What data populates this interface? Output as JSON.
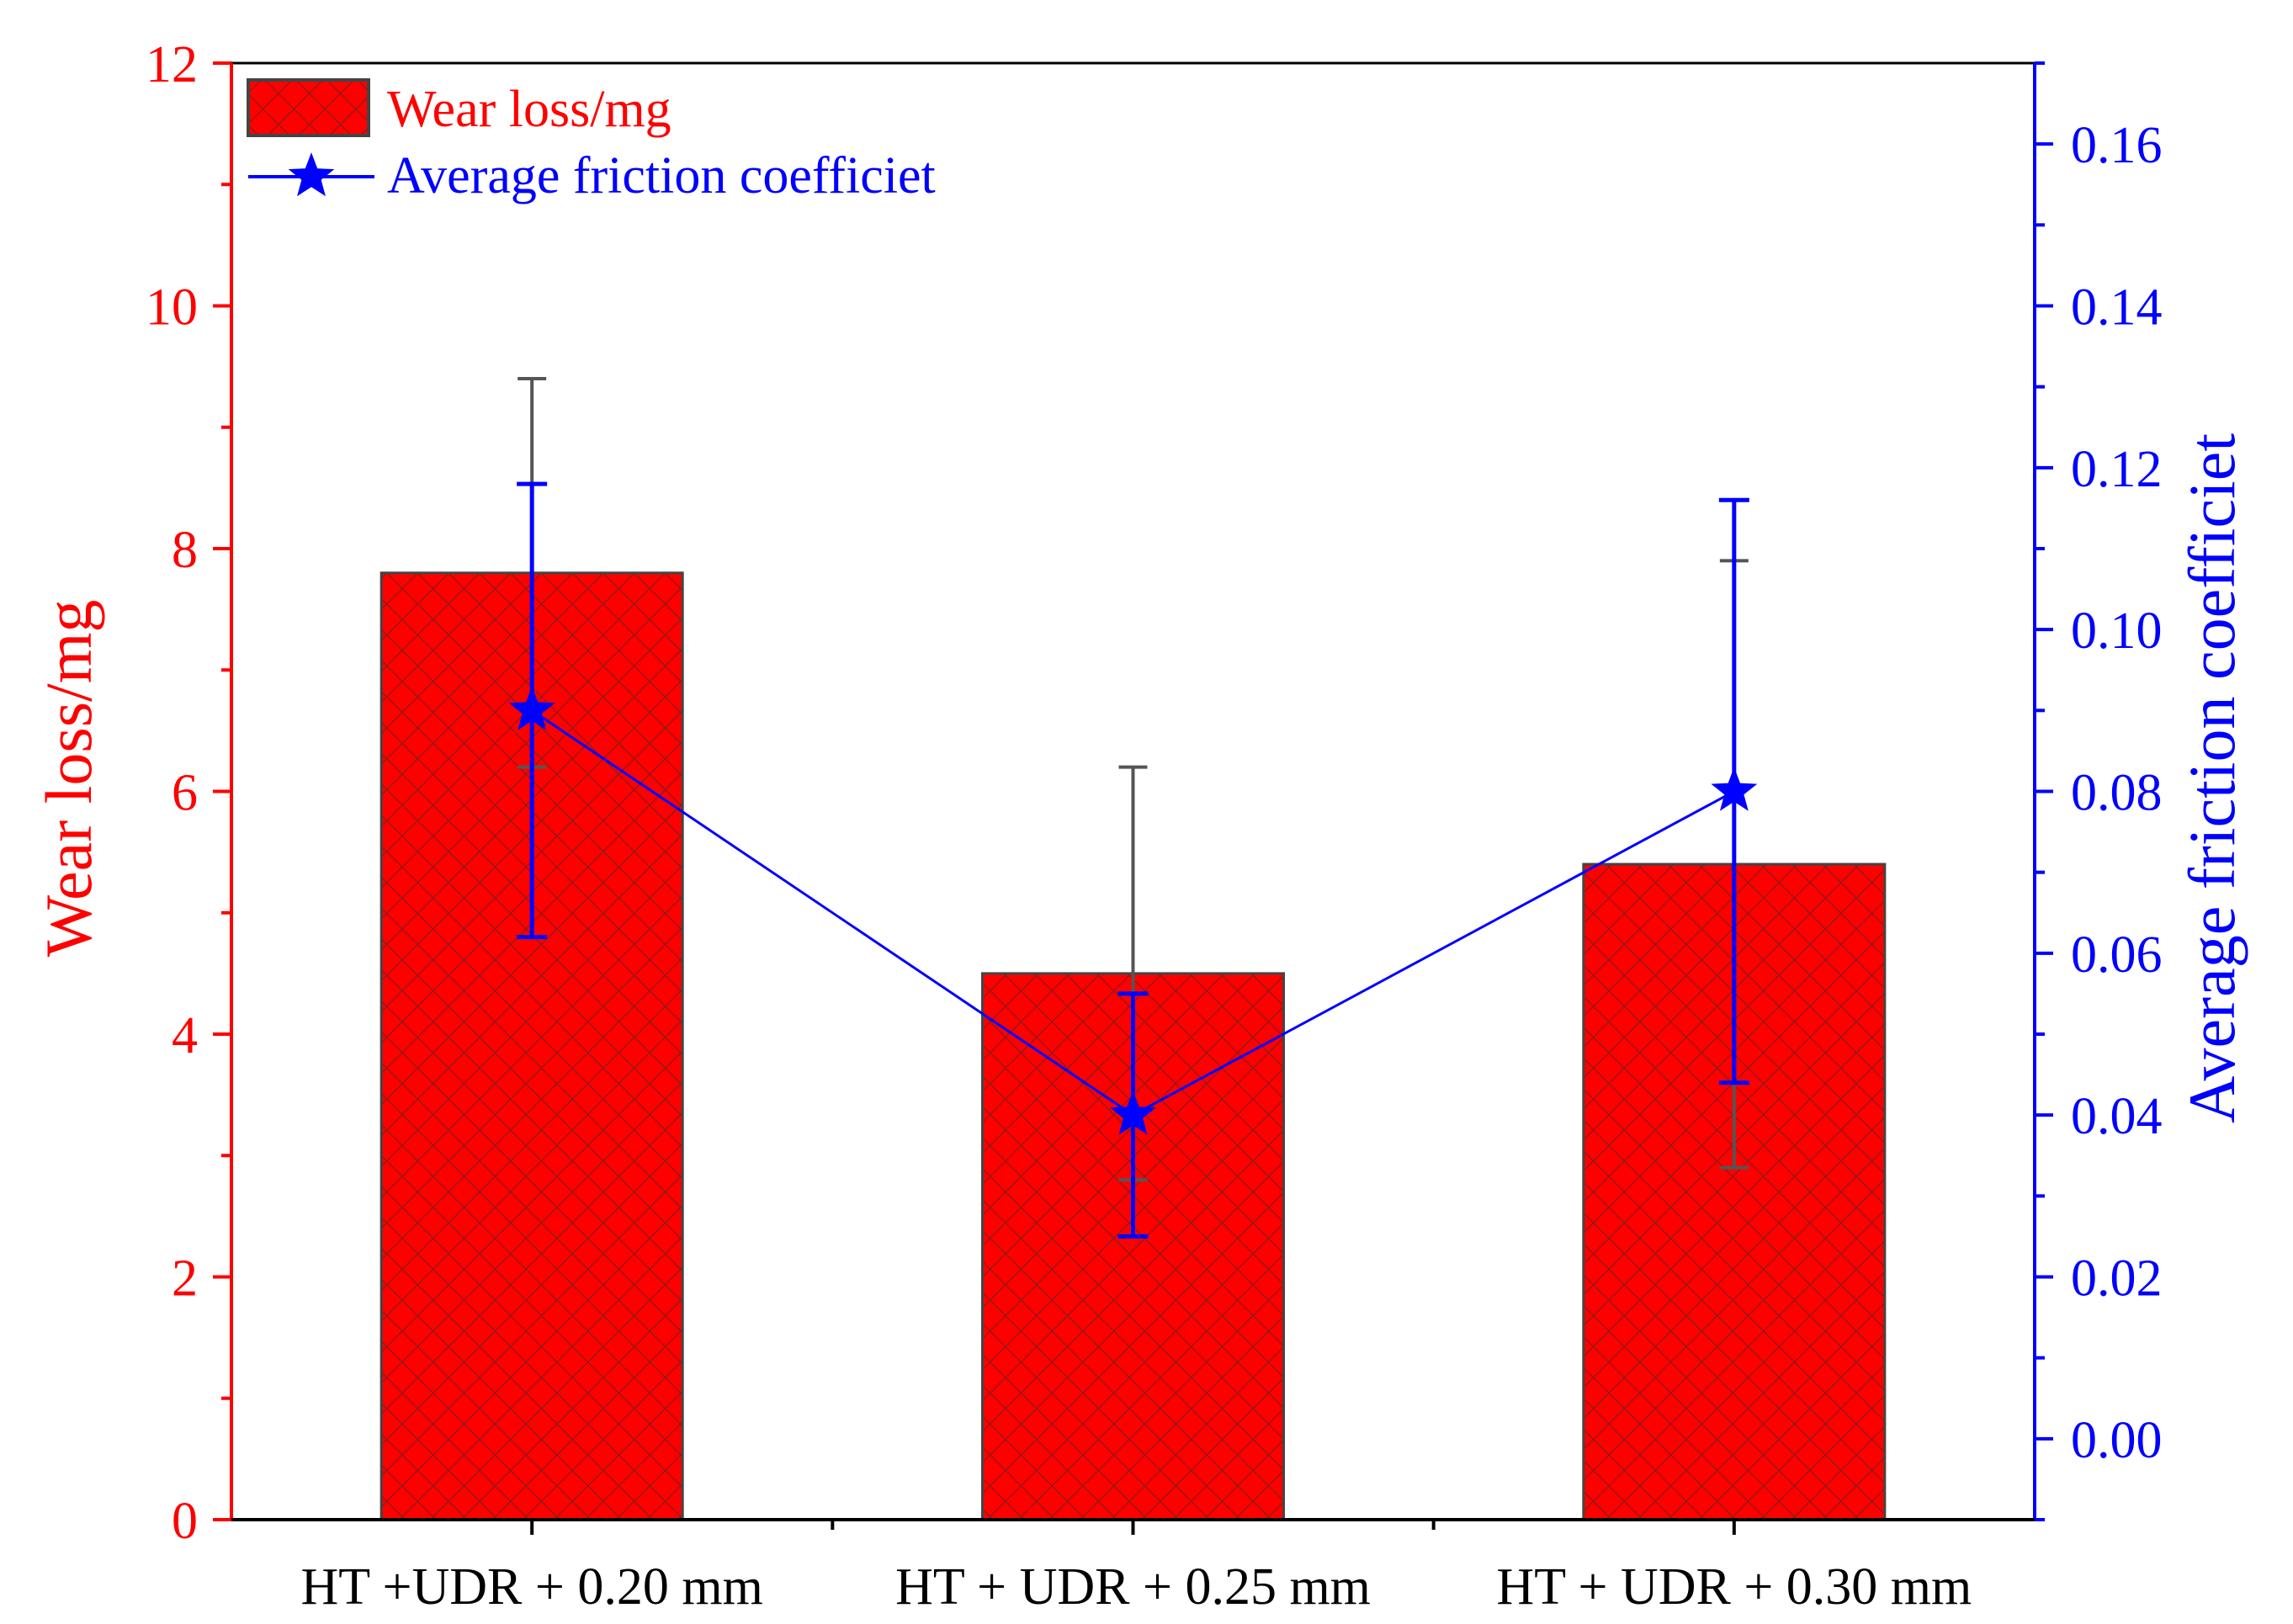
{
  "colors": {
    "left_axis": "#ff0000",
    "right_axis": "#0000ff",
    "bar_fill": "#ff0000",
    "bar_hatch": "#8a1a1a",
    "bar_edge": "#444444",
    "bar_error": "#555555",
    "line": "#0000ff",
    "frame": "#000000"
  },
  "chart_data": {
    "type": "bar+line",
    "categories": [
      "HT +UDR + 0.20 mm",
      "HT + UDR + 0.25 mm",
      "HT + UDR + 0.30 mm"
    ],
    "series": [
      {
        "name": "Wear loss/mg",
        "type": "bar",
        "axis": "left",
        "values": [
          7.8,
          4.5,
          5.4
        ],
        "error_low": [
          6.2,
          2.8,
          2.9
        ],
        "error_high": [
          9.4,
          6.2,
          7.9
        ],
        "pattern": "crosshatch"
      },
      {
        "name": "Average friction coefficiet",
        "type": "line",
        "axis": "right",
        "marker": "star",
        "values": [
          0.09,
          0.04,
          0.08
        ],
        "error_low": [
          0.062,
          0.025,
          0.044
        ],
        "error_high": [
          0.118,
          0.055,
          0.116
        ]
      }
    ],
    "left_axis": {
      "label": "Wear loss/mg",
      "range": [
        0,
        12
      ],
      "ticks": [
        "0",
        "2",
        "4",
        "6",
        "8",
        "10",
        "12"
      ]
    },
    "right_axis": {
      "label": "Average friction coefficiet",
      "range": [
        -0.01,
        0.17
      ],
      "ticks": [
        "0.00",
        "0.02",
        "0.04",
        "0.06",
        "0.08",
        "0.10",
        "0.12",
        "0.14",
        "0.16"
      ]
    },
    "legend": {
      "placement": "top-left",
      "entries": [
        "Wear loss/mg",
        "Average friction coefficiet"
      ]
    },
    "grid": false
  }
}
